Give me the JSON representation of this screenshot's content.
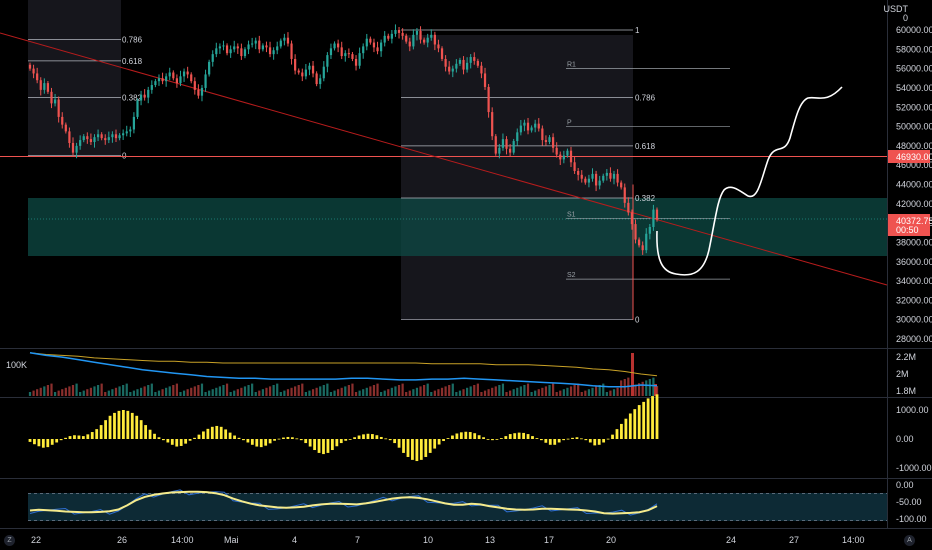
{
  "header": {
    "quote_currency": "USDT",
    "quote_suffix": "0"
  },
  "corner_labels": {
    "left": "Z",
    "right": "A"
  },
  "x_axis": {
    "ticks": [
      "22",
      "26",
      "14:00",
      "Mai",
      "4",
      "7",
      "10",
      "13",
      "17",
      "20",
      "24",
      "27",
      "14:00"
    ]
  },
  "price_axis": {
    "ticks": [
      "60000.00",
      "58000.00",
      "56000.00",
      "54000.00",
      "52000.00",
      "50000.00",
      "48000.00",
      "46000.00",
      "44000.00",
      "42000.00",
      "40000.00",
      "38000.00",
      "36000.00",
      "34000.00",
      "32000.00",
      "30000.00",
      "28000.00"
    ]
  },
  "price_tags": {
    "resistance_label": "46930.00",
    "last_price": "40372.75",
    "countdown": "00:50"
  },
  "colors": {
    "up": "#26a69a",
    "down": "#ef5350",
    "trend": "#b71c1c",
    "zone": "#0e4a44",
    "volume_ma": "#2196f3",
    "volume_line": "#c9a227",
    "oscillator": "#ffeb3b",
    "rsi_fast": "#2f6fd1",
    "rsi_slow": "#f5eb8c",
    "rsi_band": "#0d2a35",
    "forecast": "#ffffff"
  },
  "fib_left": {
    "levels": [
      "0.786",
      "0.618",
      "0.382",
      "0"
    ]
  },
  "fib_right": {
    "levels": [
      "1",
      "0.786",
      "0.618",
      "0.382",
      "0"
    ]
  },
  "pivots": {
    "labels": [
      "R1",
      "P",
      "S1",
      "S2"
    ]
  },
  "volume_axis": {
    "ticks": [
      "2.2M",
      "2M",
      "1.8M"
    ],
    "left_label": "100K"
  },
  "oscillator_axis": {
    "ticks": [
      "1000.00",
      "0.00",
      "-1000.00"
    ]
  },
  "rsi_axis": {
    "ticks": [
      "0.00",
      "-50.00",
      "-100.00"
    ]
  },
  "chart_data": {
    "type": "candlestick",
    "price_range": [
      27000,
      62000
    ],
    "resistance_level": 46930,
    "last_price": 40372.75,
    "support_zone": [
      36600,
      42600
    ],
    "fib_left_prices": [
      59000,
      56800,
      53000,
      47000
    ],
    "fib_right_prices": [
      60000,
      53000,
      48000,
      42600,
      30000
    ],
    "pivot_prices": {
      "R1": 56000,
      "P": 50000,
      "S1": 40500,
      "S2": 34200
    },
    "closes": [
      56000,
      55500,
      54800,
      53800,
      54500,
      53600,
      52400,
      52800,
      51000,
      50200,
      49500,
      48300,
      47300,
      48000,
      48600,
      49000,
      48700,
      48400,
      48900,
      49200,
      48800,
      48600,
      48900,
      49200,
      48800,
      49100,
      49300,
      49500,
      49700,
      51000,
      52700,
      53300,
      53000,
      53800,
      54300,
      54700,
      55000,
      54700,
      55200,
      55600,
      55000,
      54500,
      55200,
      55700,
      55400,
      54700,
      53800,
      53200,
      54000,
      55400,
      56700,
      57500,
      58100,
      58300,
      58400,
      57600,
      58000,
      58300,
      58100,
      57300,
      58000,
      58500,
      58600,
      58900,
      58000,
      58400,
      58200,
      57500,
      57900,
      58300,
      58900,
      59200,
      58600,
      57000,
      55800,
      55600,
      55200,
      55900,
      56300,
      55500,
      54400,
      55000,
      56200,
      57400,
      58100,
      58600,
      58200,
      57300,
      57600,
      57500,
      57000,
      56300,
      57600,
      58300,
      59100,
      58700,
      58200,
      57800,
      58700,
      59400,
      59100,
      59600,
      60000,
      59700,
      59400,
      58800,
      58300,
      59500,
      59900,
      59000,
      58700,
      59200,
      59500,
      58500,
      58100,
      57000,
      56200,
      55700,
      56000,
      56500,
      56900,
      55900,
      56600,
      57200,
      56800,
      56300,
      55500,
      54100,
      51500,
      49000,
      47200,
      47800,
      48700,
      47700,
      47300,
      48500,
      49400,
      50100,
      50400,
      49600,
      49900,
      50300,
      49800,
      48600,
      48400,
      48900,
      47800,
      47100,
      46600,
      47000,
      47500,
      46300,
      45400,
      45000,
      44600,
      44200,
      44600,
      45100,
      43900,
      44400,
      44900,
      45200,
      44600,
      45100,
      44200,
      43700,
      42100,
      41100,
      39900,
      38300,
      37700,
      37200,
      38900,
      39600,
      41400,
      40372
    ],
    "volume": {
      "ma_fast": [
        2.25,
        2.22,
        2.2,
        2.17,
        2.14,
        2.11,
        2.08,
        2.05,
        2.03,
        2.01,
        1.99,
        1.97,
        1.96,
        1.95,
        1.95,
        1.94,
        1.94,
        1.94,
        1.94,
        1.94,
        1.95,
        1.95,
        1.94,
        1.93,
        1.93,
        1.94,
        1.94,
        1.95,
        1.94,
        1.93,
        1.92,
        1.91,
        1.9,
        1.89,
        1.88,
        1.86,
        1.85,
        1.85,
        1.87,
        1.86
      ],
      "ma_slow": [
        2.25,
        2.23,
        2.22,
        2.21,
        2.19,
        2.18,
        2.17,
        2.16,
        2.15,
        2.15,
        2.14,
        2.14,
        2.13,
        2.13,
        2.13,
        2.13,
        2.13,
        2.13,
        2.13,
        2.13,
        2.13,
        2.13,
        2.13,
        2.13,
        2.13,
        2.12,
        2.12,
        2.12,
        2.12,
        2.11,
        2.11,
        2.11,
        2.1,
        2.09,
        2.08,
        2.06,
        2.05,
        2.03,
        2.0,
        1.98
      ]
    },
    "oscillator": [
      -100,
      -180,
      -250,
      -300,
      -280,
      -200,
      -120,
      -40,
      40,
      100,
      130,
      120,
      100,
      160,
      240,
      340,
      480,
      650,
      800,
      900,
      970,
      1000,
      970,
      900,
      800,
      650,
      480,
      320,
      180,
      60,
      -40,
      -120,
      -200,
      -260,
      -240,
      -160,
      -60,
      40,
      150,
      260,
      350,
      420,
      450,
      420,
      330,
      220,
      120,
      40,
      -40,
      -120,
      -200,
      -260,
      -280,
      -230,
      -150,
      -60,
      10,
      50,
      70,
      60,
      20,
      -40,
      -140,
      -260,
      -380,
      -480,
      -520,
      -480,
      -380,
      -250,
      -140,
      -60,
      0,
      60,
      120,
      160,
      180,
      170,
      130,
      70,
      20,
      -40,
      -140,
      -300,
      -480,
      -620,
      -720,
      -760,
      -720,
      -620,
      -480,
      -330,
      -190,
      -70,
      30,
      120,
      190,
      230,
      250,
      240,
      200,
      130,
      60,
      -10,
      -40,
      -20,
      30,
      100,
      170,
      200,
      220,
      210,
      170,
      100,
      30,
      -40,
      -130,
      -200,
      -200,
      -120,
      -40,
      10,
      40,
      60,
      20,
      -40,
      -120,
      -220,
      -200,
      -120,
      10,
      150,
      340,
      520,
      700,
      880,
      1030,
      1170,
      1280,
      1400,
      1480,
      1540
    ],
    "rsi": {
      "slow": [
        -75,
        -73,
        -74,
        -76,
        -78,
        -79,
        -80,
        -80,
        -79,
        -77,
        -72,
        -60,
        -45,
        -35,
        -29,
        -25,
        -22,
        -21,
        -20,
        -20,
        -21,
        -24,
        -30,
        -40,
        -48,
        -55,
        -60,
        -63,
        -66,
        -67,
        -66,
        -64,
        -60,
        -57,
        -55,
        -55,
        -56,
        -57,
        -54,
        -50,
        -45,
        -40,
        -37,
        -36,
        -38,
        -42,
        -48,
        -54,
        -58,
        -58,
        -55,
        -57,
        -62,
        -66,
        -70,
        -72,
        -73,
        -72,
        -70,
        -70,
        -71,
        -72,
        -73,
        -75,
        -78,
        -83,
        -84,
        -83,
        -82,
        -80,
        -74,
        -62
      ]
    }
  }
}
